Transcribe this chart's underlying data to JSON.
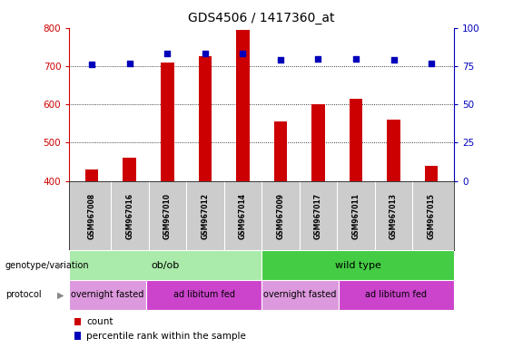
{
  "title": "GDS4506 / 1417360_at",
  "samples": [
    "GSM967008",
    "GSM967016",
    "GSM967010",
    "GSM967012",
    "GSM967014",
    "GSM967009",
    "GSM967017",
    "GSM967011",
    "GSM967013",
    "GSM967015"
  ],
  "counts": [
    430,
    460,
    710,
    725,
    795,
    555,
    600,
    615,
    560,
    440
  ],
  "percentiles": [
    76,
    77,
    83,
    83,
    83,
    79,
    80,
    80,
    79,
    77
  ],
  "ylim_left": [
    400,
    800
  ],
  "ylim_right": [
    0,
    100
  ],
  "yticks_left": [
    400,
    500,
    600,
    700,
    800
  ],
  "yticks_right": [
    0,
    25,
    50,
    75,
    100
  ],
  "bar_color": "#cc0000",
  "dot_color": "#0000bb",
  "sample_bg_color": "#cccccc",
  "genotype_groups": [
    {
      "label": "ob/ob",
      "start": 0,
      "end": 5,
      "color": "#aaeaaa"
    },
    {
      "label": "wild type",
      "start": 5,
      "end": 10,
      "color": "#44cc44"
    }
  ],
  "protocol_groups": [
    {
      "label": "overnight fasted",
      "start": 0,
      "end": 2,
      "color": "#dd99dd"
    },
    {
      "label": "ad libitum fed",
      "start": 2,
      "end": 5,
      "color": "#cc44cc"
    },
    {
      "label": "overnight fasted",
      "start": 5,
      "end": 7,
      "color": "#dd99dd"
    },
    {
      "label": "ad libitum fed",
      "start": 7,
      "end": 10,
      "color": "#cc44cc"
    }
  ],
  "legend_count_color": "#cc0000",
  "legend_dot_color": "#0000bb",
  "title_fontsize": 10,
  "bar_width": 0.35,
  "sample_fontsize": 5.5,
  "geno_fontsize": 8,
  "prot_fontsize": 7
}
